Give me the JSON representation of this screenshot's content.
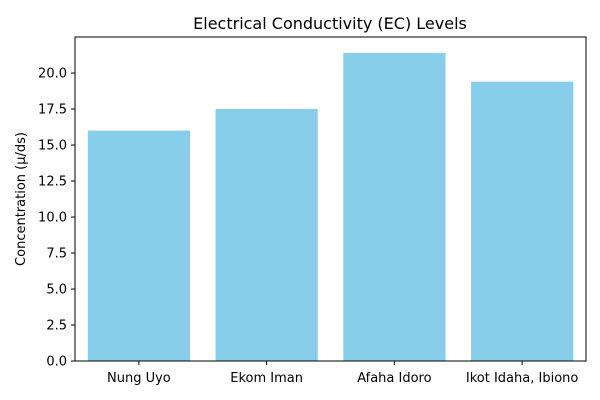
{
  "chart_data": {
    "type": "bar",
    "title": "Electrical Conductivity (EC) Levels",
    "xlabel": "",
    "ylabel": "Concentration (µ/ds)",
    "categories": [
      "Nung Uyo",
      "Ekom Iman",
      "Afaha Idoro",
      "Ikot Idaha, Ibiono"
    ],
    "values": [
      16.0,
      17.5,
      21.4,
      19.4
    ],
    "ylim": [
      0,
      22.5
    ],
    "yticks": [
      0.0,
      2.5,
      5.0,
      7.5,
      10.0,
      12.5,
      15.0,
      17.5,
      20.0
    ],
    "ytick_labels": [
      "0.0",
      "2.5",
      "5.0",
      "7.5",
      "10.0",
      "12.5",
      "15.0",
      "17.5",
      "20.0"
    ],
    "bar_color": "#87CEEB",
    "grid": false,
    "legend": "none"
  }
}
